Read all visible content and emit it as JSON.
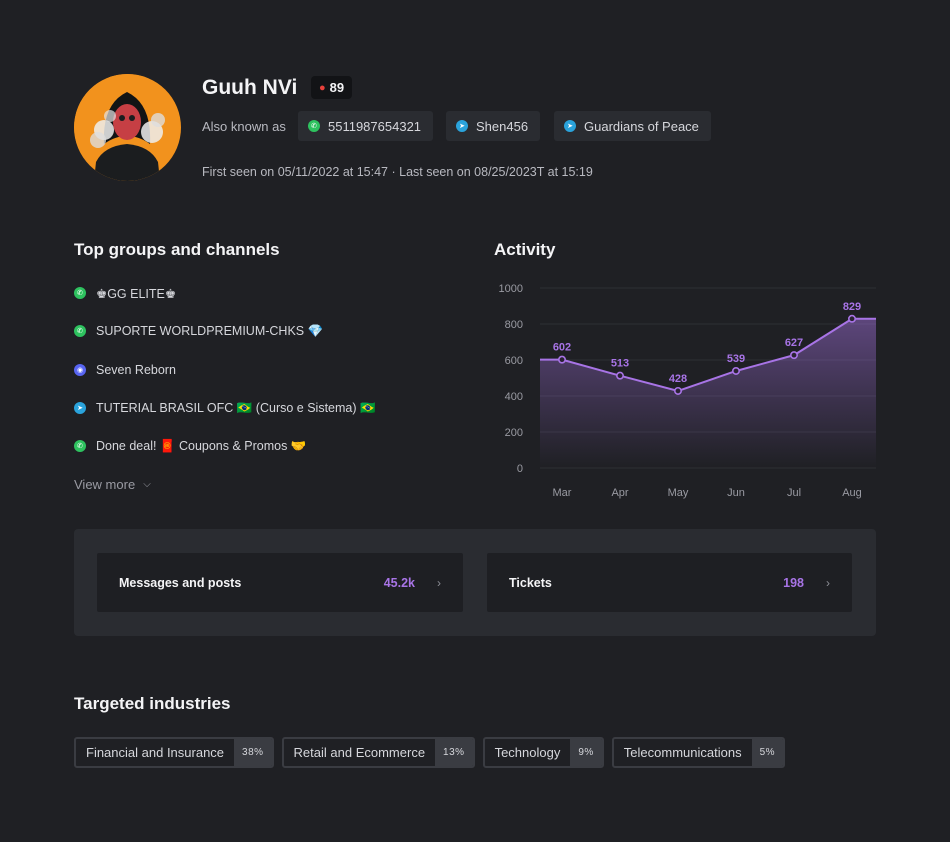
{
  "profile": {
    "name": "Guuh NVi",
    "score": "89",
    "aka_label": "Also known as",
    "aliases": [
      {
        "icon": "whatsapp-icon",
        "text": "5511987654321"
      },
      {
        "icon": "telegram-icon",
        "text": "Shen456"
      },
      {
        "icon": "telegram-icon",
        "text": "Guardians of Peace"
      }
    ],
    "seen": "First seen on 05/11/2022 at 15:47  ·  Last seen on 08/25/2023T at 15:19"
  },
  "groups": {
    "title": "Top groups and channels",
    "items": [
      {
        "icon": "whatsapp-icon",
        "text": "♚GG ELITE♚"
      },
      {
        "icon": "whatsapp-icon",
        "text": "SUPORTE WORLDPREMIUM-CHKS 💎"
      },
      {
        "icon": "discord-icon",
        "text": "Seven Reborn"
      },
      {
        "icon": "telegram-icon",
        "text": "TUTERIAL BRASIL OFC 🇧🇷 (Curso e Sistema) 🇧🇷"
      },
      {
        "icon": "whatsapp-icon",
        "text": "Done deal! 🧧 Coupons & Promos 🤝"
      }
    ],
    "view_more": "View more"
  },
  "activity": {
    "title": "Activity"
  },
  "chart_data": {
    "type": "area",
    "categories": [
      "Mar",
      "Apr",
      "May",
      "Jun",
      "Jul",
      "Aug"
    ],
    "values": [
      602,
      513,
      428,
      539,
      627,
      829
    ],
    "yticks": [
      0,
      200,
      400,
      600,
      800,
      1000
    ],
    "ylim": [
      0,
      1000
    ],
    "color": "#a874e6",
    "grid": true
  },
  "stats": [
    {
      "label": "Messages and posts",
      "value": "45.2k"
    },
    {
      "label": "Tickets",
      "value": "198"
    }
  ],
  "industries": {
    "title": "Targeted industries",
    "items": [
      {
        "name": "Financial and Insurance",
        "pct": "38%"
      },
      {
        "name": "Retail and Ecommerce",
        "pct": "13%"
      },
      {
        "name": "Technology",
        "pct": "9%"
      },
      {
        "name": "Telecommunications",
        "pct": "5%"
      }
    ]
  },
  "colors": {
    "accent": "#a874e6",
    "background": "#1f2024",
    "panel": "#2a2c31"
  }
}
